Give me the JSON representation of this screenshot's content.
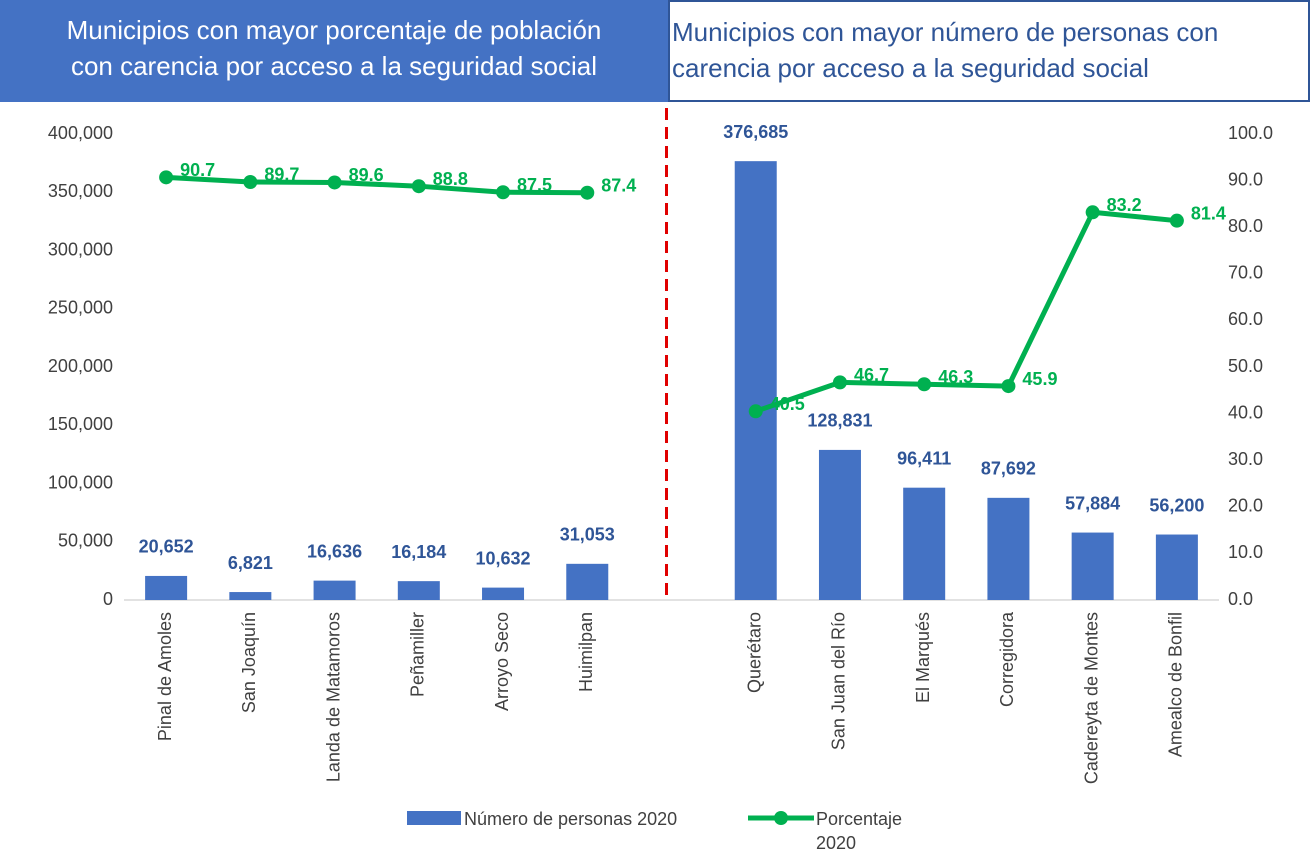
{
  "chart_data": {
    "type": "bar_line",
    "headers": [
      {
        "lines": [
          "Municipios con mayor porcentaje de población",
          "con carencia por acceso a la seguridad social"
        ]
      },
      {
        "lines": [
          "Municipios con mayor número de personas con",
          "carencia por acceso a la seguridad social"
        ]
      }
    ],
    "categories": [
      "Pinal de Amoles",
      "San Joaquín",
      "Landa de Matamoros",
      "Peñamiller",
      "Arroyo Seco",
      "Huimilpan",
      null,
      "Querétaro",
      "San Juan del Río",
      "El Marqués",
      "Corregidora",
      "Cadereyta de Montes",
      "Amealco de Bonfil"
    ],
    "series": [
      {
        "name": "Número de personas 2020",
        "color": "#4472c4",
        "kind": "bar",
        "values": [
          20652,
          6821,
          16636,
          16184,
          10632,
          31053,
          null,
          376685,
          128831,
          96411,
          87692,
          57884,
          56200
        ],
        "value_labels": [
          "20,652",
          "6,821",
          "16,636",
          "16,184",
          "10,632",
          "31,053",
          null,
          "376,685",
          "128,831",
          "96,411",
          "87,692",
          "57,884",
          "56,200"
        ]
      },
      {
        "name": "Porcentaje 2020",
        "color": "#00b050",
        "kind": "line",
        "axis": "y2",
        "values": [
          90.7,
          89.7,
          89.6,
          88.8,
          87.5,
          87.4,
          null,
          40.5,
          46.7,
          46.3,
          45.9,
          83.2,
          81.4
        ]
      }
    ],
    "ylim": [
      0,
      400000
    ],
    "yticks": [
      0,
      {
        "value": 50000,
        "label": "50,000"
      },
      {
        "value": 100000,
        "label": "100,000"
      },
      {
        "value": 150000,
        "label": "150,000"
      },
      {
        "value": 200000,
        "label": "200,000"
      },
      {
        "value": 250000,
        "label": "250,000"
      },
      {
        "value": 300000,
        "label": "300,000"
      },
      {
        "value": 350000,
        "label": "350,000"
      },
      {
        "value": 400000,
        "label": "400,000"
      }
    ],
    "y2lim": [
      0,
      100
    ],
    "y2ticks": [
      {
        "value": 0,
        "label": "0.0"
      },
      {
        "value": 10,
        "label": "10.0"
      },
      {
        "value": 20,
        "label": "20.0"
      },
      {
        "value": 30,
        "label": "30.0"
      },
      {
        "value": 40,
        "label": "40.0"
      },
      {
        "value": 50,
        "label": "50.0"
      },
      {
        "value": 60,
        "label": "60.0"
      },
      {
        "value": 70,
        "label": "70.0"
      },
      {
        "value": 80,
        "label": "80.0"
      },
      {
        "value": 90,
        "label": "90.0"
      },
      {
        "value": 100,
        "label": "100.0"
      }
    ],
    "grid": false,
    "legend": "bottom"
  }
}
